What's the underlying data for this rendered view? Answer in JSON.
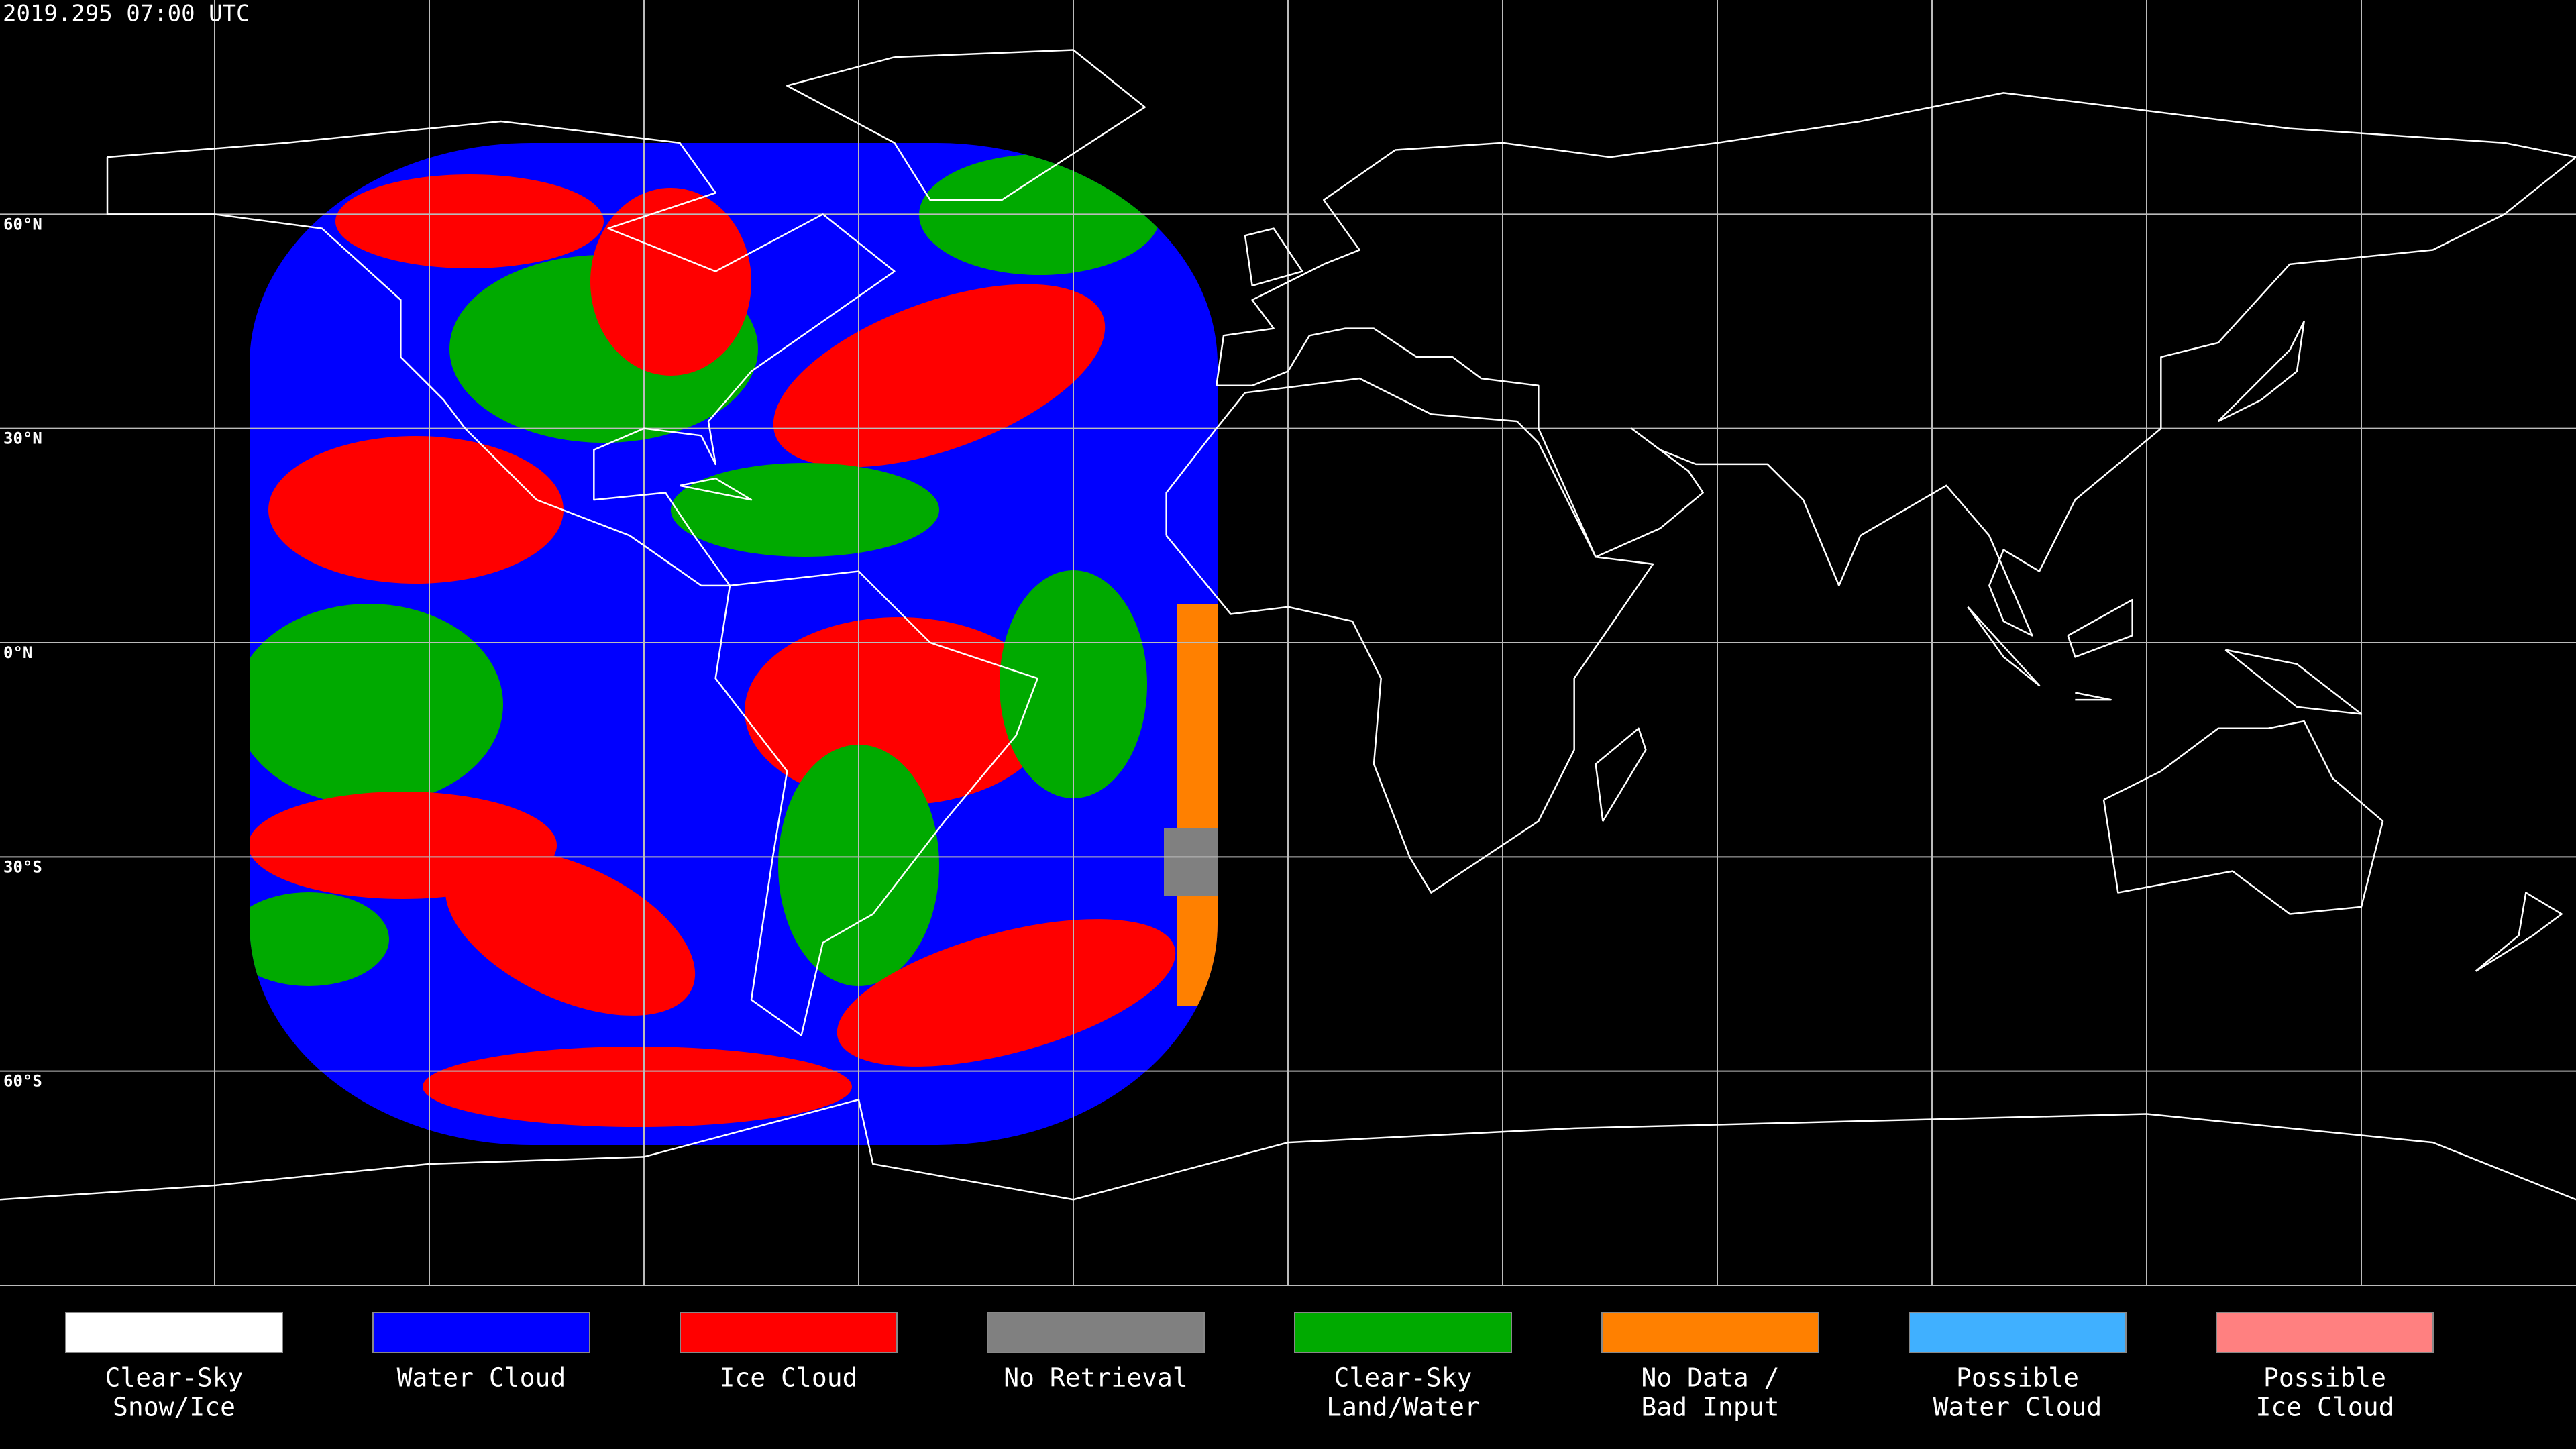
{
  "title": "2019.295 07:00 UTC",
  "latitude_labels": [
    "60°N",
    "30°N",
    "0°N",
    "30°S",
    "60°S"
  ],
  "legend": [
    {
      "label": [
        "Clear-Sky",
        "Snow/Ice"
      ],
      "color": "#ffffff"
    },
    {
      "label": [
        "Water Cloud"
      ],
      "color": "#0000ff"
    },
    {
      "label": [
        "Ice Cloud"
      ],
      "color": "#ff0000"
    },
    {
      "label": [
        "No Retrieval"
      ],
      "color": "#808080"
    },
    {
      "label": [
        "Clear-Sky",
        "Land/Water"
      ],
      "color": "#00aa00"
    },
    {
      "label": [
        "No Data /",
        "Bad Input"
      ],
      "color": "#ff8000"
    },
    {
      "label": [
        "Possible",
        "Water Cloud"
      ],
      "color": "#40b0ff"
    },
    {
      "label": [
        "Possible",
        "Ice Cloud"
      ],
      "color": "#ff8080"
    }
  ]
}
